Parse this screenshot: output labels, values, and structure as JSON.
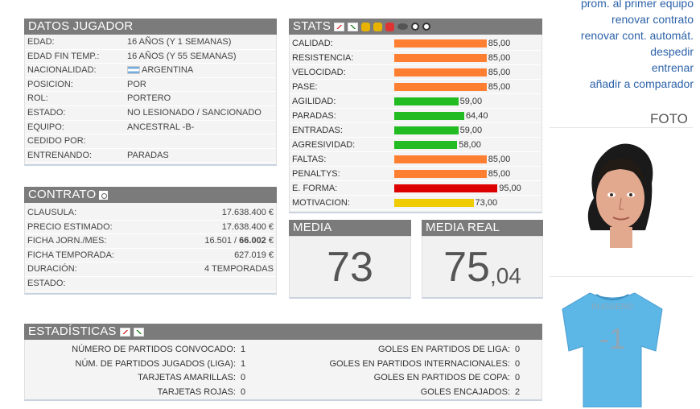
{
  "links": [
    "prom. al primer equipo",
    "renovar contrato",
    "renovar cont. automát.",
    "despedir",
    "entrenar",
    "añadir a comparador"
  ],
  "datos": {
    "title": "DATOS JUGADOR",
    "rows": [
      {
        "label": "EDAD:",
        "value": "16 AÑOS (Y 1 SEMANAS)"
      },
      {
        "label": "EDAD FIN TEMP.:",
        "value": "16 AÑOS (Y 55 SEMANAS)"
      },
      {
        "label": "NACIONALIDAD:",
        "value": "ARGENTINA"
      },
      {
        "label": "POSICION:",
        "value": "POR"
      },
      {
        "label": "ROL:",
        "value": "PORTERO"
      },
      {
        "label": "ESTADO:",
        "value": "NO LESIONADO / SANCIONADO"
      },
      {
        "label": "EQUIPO:",
        "value": "ANCESTRAL -B-"
      },
      {
        "label": "CEDIDO POR:",
        "value": ""
      },
      {
        "label": "ENTRENANDO:",
        "value": "PARADAS"
      }
    ]
  },
  "contrato": {
    "title": "CONTRATO",
    "rows": [
      {
        "label": "CLAUSULA:",
        "value": "17.638.400 €"
      },
      {
        "label": "PRECIO ESTIMADO:",
        "value": "17.638.400 €"
      },
      {
        "label": "FICHA JORN./MES:",
        "value_a": "16.501 / ",
        "value_b": "66.002",
        "value_c": " €"
      },
      {
        "label": "FICHA TEMPORADA:",
        "value": "627.019 €"
      },
      {
        "label": "DURACIÓN:",
        "value": "4 TEMPORADAS"
      },
      {
        "label": "ESTADO:",
        "value": ""
      }
    ]
  },
  "stats": {
    "title": "STATS",
    "colors": {
      "orange": "#ff7f32",
      "green": "#22bb22",
      "red": "#dd0000",
      "yellow": "#eecc00"
    },
    "rows": [
      {
        "label": "CALIDAD:",
        "value": "85,00",
        "level": 85,
        "color": "orange"
      },
      {
        "label": "RESISTENCIA:",
        "value": "85,00",
        "level": 85,
        "color": "orange"
      },
      {
        "label": "VELOCIDAD:",
        "value": "85,00",
        "level": 85,
        "color": "orange"
      },
      {
        "label": "PASE:",
        "value": "85,00",
        "level": 85,
        "color": "orange"
      },
      {
        "label": "AGILIDAD:",
        "value": "59,00",
        "level": 59,
        "color": "green"
      },
      {
        "label": "PARADAS:",
        "value": "64,40",
        "level": 64.4,
        "color": "green"
      },
      {
        "label": "ENTRADAS:",
        "value": "59,00",
        "level": 59,
        "color": "green"
      },
      {
        "label": "AGRESIVIDAD:",
        "value": "58,00",
        "level": 58,
        "color": "green"
      },
      {
        "label": "FALTAS:",
        "value": "85,00",
        "level": 85,
        "color": "orange"
      },
      {
        "label": "PENALTYS:",
        "value": "85,00",
        "level": 85,
        "color": "orange"
      },
      {
        "label": "E. FORMA:",
        "value": "95,00",
        "level": 95,
        "color": "red"
      },
      {
        "label": "MOTIVACION:",
        "value": "73,00",
        "level": 73,
        "color": "yellow"
      }
    ]
  },
  "media": {
    "title": "MEDIA",
    "value": "73"
  },
  "media_real": {
    "title": "MEDIA REAL",
    "int": "75",
    "dec": ",04"
  },
  "foto": {
    "title": "FOTO"
  },
  "shirt": {
    "name": "RUGGERO",
    "number": "-1"
  },
  "estadisticas": {
    "title": "ESTADÍSTICAS",
    "left": [
      {
        "label": "NÚMERO DE PARTIDOS CONVOCADO:",
        "value": "1"
      },
      {
        "label": "NÚM. DE PARTIDOS JUGADOS (LIGA):",
        "value": "1"
      },
      {
        "label": "TARJETAS AMARILLAS:",
        "value": "0"
      },
      {
        "label": "TARJETAS ROJAS:",
        "value": "0"
      }
    ],
    "right": [
      {
        "label": "GOLES EN PARTIDOS DE LIGA:",
        "value": "0"
      },
      {
        "label": "GOLES EN PARTIDOS INTERNACIONALES:",
        "value": "0"
      },
      {
        "label": "GOLES EN PARTIDOS DE COPA:",
        "value": "0"
      },
      {
        "label": "GOLES ENCAJADOS:",
        "value": "2"
      }
    ]
  }
}
